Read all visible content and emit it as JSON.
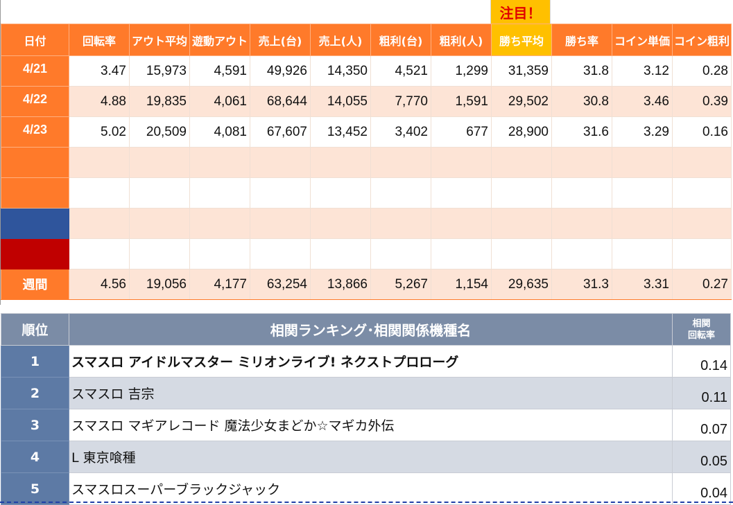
{
  "note": "注目！",
  "stats": {
    "headers": [
      "日付",
      "回転率",
      "アウト平均",
      "遊動アウト",
      "売上(台)",
      "売上(人)",
      "粗利(台)",
      "粗利(人)",
      "勝ち平均",
      "勝ち率",
      "コイン単価",
      "コイン粗利"
    ],
    "rows": [
      {
        "date": "4/21",
        "values": [
          "3.47",
          "15,973",
          "4,591",
          "49,926",
          "14,350",
          "4,521",
          "1,299",
          "31,359",
          "31.8",
          "3.12",
          "0.28"
        ]
      },
      {
        "date": "4/22",
        "values": [
          "4.88",
          "19,835",
          "4,061",
          "68,644",
          "14,055",
          "7,770",
          "1,591",
          "29,502",
          "30.8",
          "3.46",
          "0.39"
        ]
      },
      {
        "date": "4/23",
        "values": [
          "5.02",
          "20,509",
          "4,081",
          "67,607",
          "13,452",
          "3,402",
          "677",
          "28,900",
          "31.6",
          "3.29",
          "0.16"
        ]
      }
    ],
    "week": {
      "label": "週間",
      "values": [
        "4.56",
        "19,056",
        "4,177",
        "63,254",
        "13,866",
        "5,267",
        "1,154",
        "29,635",
        "31.3",
        "3.31",
        "0.27"
      ]
    }
  },
  "ranking": {
    "head_rank": "順位",
    "head_title": "相関ランキング･相関関係機種名",
    "head_rate_line1": "相関",
    "head_rate_line2": "回転率",
    "items": [
      {
        "rank": "1",
        "name": "スマスロ アイドルマスター ミリオンライブ! ネクストプロローグ",
        "rate": "0.14"
      },
      {
        "rank": "2",
        "name": "スマスロ 吉宗",
        "rate": "0.11"
      },
      {
        "rank": "3",
        "name": "スマスロ マギアレコード 魔法少女まどか☆マギカ外伝",
        "rate": "0.07"
      },
      {
        "rank": "4",
        "name": "L 東京喰種",
        "rate": "0.05"
      },
      {
        "rank": "5",
        "name": "スマスロスーパーブラックジャック",
        "rate": "0.04"
      }
    ]
  },
  "colors": {
    "header_orange": "#ff7a2a",
    "highlight_yellow": "#ffc000",
    "blue": "#2f559c",
    "red": "#c00000",
    "rank_blue": "#5d7aa5"
  }
}
